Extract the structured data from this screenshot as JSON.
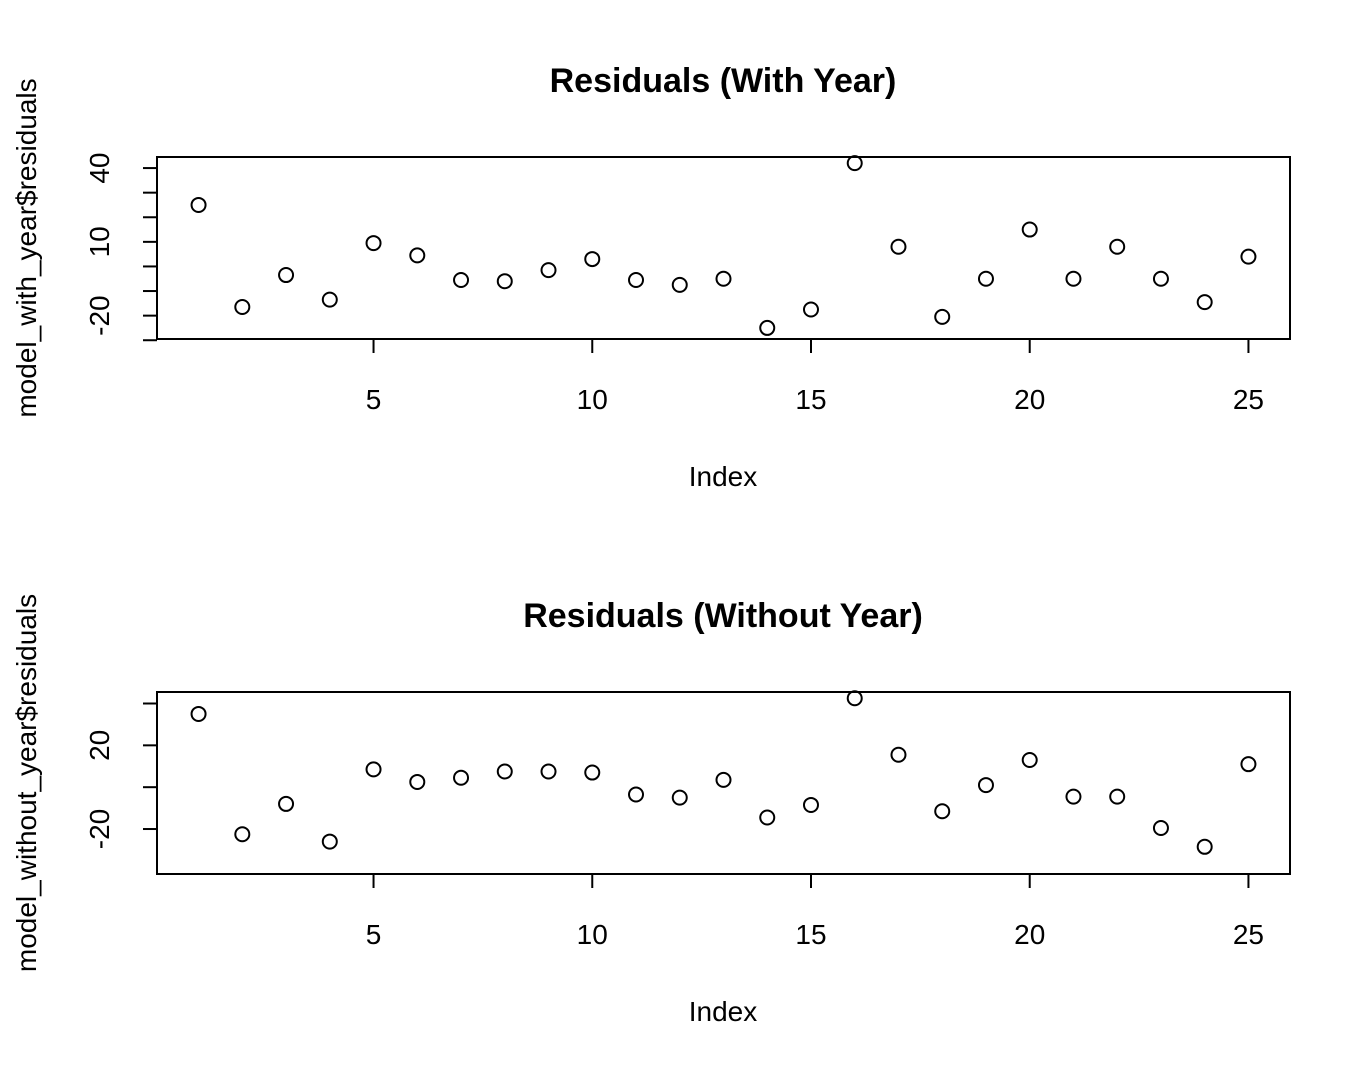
{
  "chart_data": [
    {
      "type": "scatter",
      "title": "Residuals (With Year)",
      "xlabel": "Index",
      "ylabel": "model_with_year$residuals",
      "xlim": [
        0.05,
        25.95
      ],
      "ylim": [
        -29.5,
        44.5
      ],
      "xticks": [
        5,
        10,
        15,
        20,
        25
      ],
      "yticks": [
        -30,
        -20,
        -10,
        0,
        10,
        20,
        30,
        40
      ],
      "ytick_labels": [
        "",
        "-20",
        "",
        "",
        "10",
        "",
        "",
        "40"
      ],
      "grid": false,
      "legend": "none",
      "x": [
        1,
        2,
        3,
        4,
        5,
        6,
        7,
        8,
        9,
        10,
        11,
        12,
        13,
        14,
        15,
        16,
        17,
        18,
        19,
        20,
        21,
        22,
        23,
        24,
        25
      ],
      "y": [
        25,
        -16.5,
        -3.5,
        -13.5,
        9.5,
        4.5,
        -5.5,
        -6,
        -1.5,
        3,
        -5.5,
        -7.5,
        -5,
        -25,
        -17.5,
        42,
        8,
        -20.5,
        -5,
        15,
        -5,
        8,
        -5,
        -14.5,
        4
      ]
    },
    {
      "type": "scatter",
      "title": "Residuals (Without Year)",
      "xlabel": "Index",
      "ylabel": "model_without_year$residuals",
      "xlim": [
        0.05,
        25.95
      ],
      "ylim": [
        -41.5,
        45.5
      ],
      "xticks": [
        5,
        10,
        15,
        20,
        25
      ],
      "yticks": [
        -20,
        20
      ],
      "minor_yticks": [
        0,
        40
      ],
      "ytick_labels": [
        "-20",
        "20"
      ],
      "grid": false,
      "legend": "none",
      "x": [
        1,
        2,
        3,
        4,
        5,
        6,
        7,
        8,
        9,
        10,
        11,
        12,
        13,
        14,
        15,
        16,
        17,
        18,
        19,
        20,
        21,
        22,
        23,
        24,
        25
      ],
      "y": [
        35,
        -22.5,
        -8,
        -26,
        8.5,
        2.5,
        4.5,
        7.5,
        7.5,
        7,
        -3.5,
        -5,
        3.5,
        -14.5,
        -8.5,
        42.5,
        15.5,
        -11.5,
        1,
        13,
        -4.5,
        -4.5,
        -19.5,
        -28.5,
        11
      ]
    }
  ]
}
